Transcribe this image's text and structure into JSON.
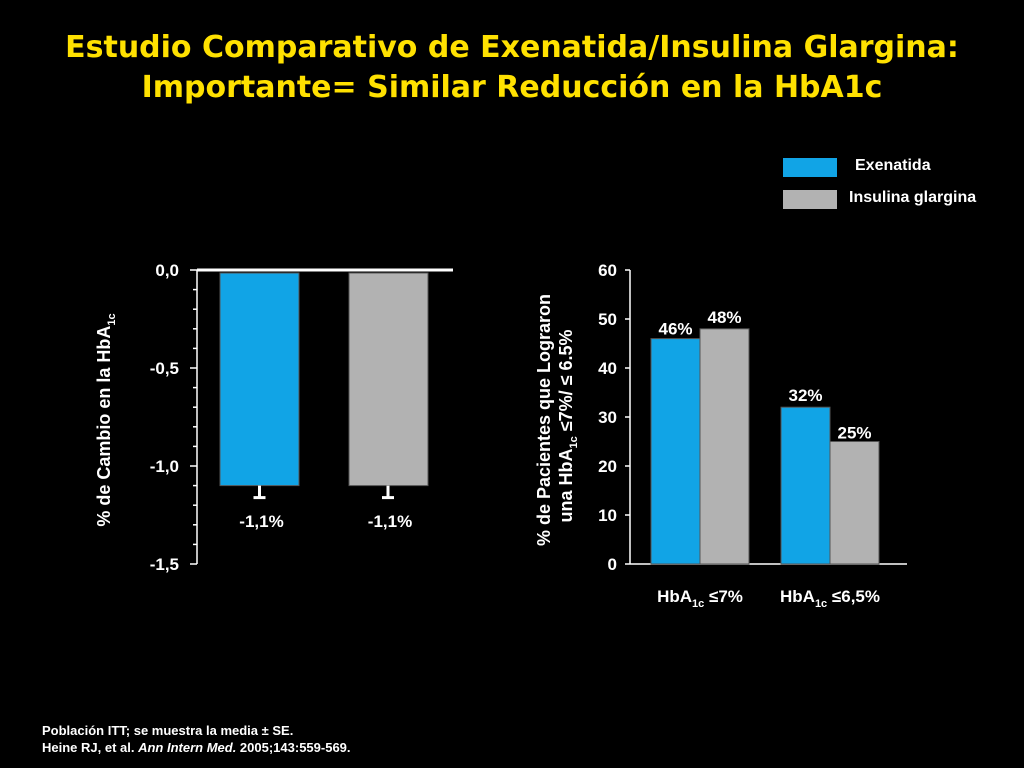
{
  "slide": {
    "title_line1": "Estudio Comparativo de Exenatida/Insulina Glargina:",
    "title_line2": "Importante= Similar Reducción en la HbA1c"
  },
  "legend": [
    {
      "label": "Exenatida",
      "color": "#11a4e6"
    },
    {
      "label": "Insulina glargina",
      "color": "#b2b2b2"
    }
  ],
  "chart_data": [
    {
      "type": "bar",
      "ylabel": "% de Cambio en la HbA1c",
      "ylim": [
        -1.5,
        0.0
      ],
      "yticks": [
        "0,0",
        "-0,5",
        "-1,0",
        "-1,5"
      ],
      "series": [
        {
          "name": "Exenatida",
          "value": -1.1,
          "data_label": "-1,1%",
          "color": "#11a4e6"
        },
        {
          "name": "Insulina glargina",
          "value": -1.1,
          "data_label": "-1,1%",
          "color": "#b2b2b2"
        }
      ],
      "error_bars": true
    },
    {
      "type": "bar",
      "ylabel_line1": "% de Pacientes que Lograron",
      "ylabel_line2": "una HbA1c ≤7%/ ≤ 6.5%",
      "ylim": [
        0,
        60
      ],
      "yticks": [
        "0",
        "10",
        "20",
        "30",
        "40",
        "50",
        "60"
      ],
      "categories": [
        "HbA1c ≤7%",
        "HbA1c ≤6,5%"
      ],
      "category_parts": [
        {
          "base": "HbA",
          "sub": "1c",
          "rest": " ≤7%"
        },
        {
          "base": "HbA",
          "sub": "1c",
          "rest": " ≤6,5%"
        }
      ],
      "series": [
        {
          "name": "Exenatida",
          "values": [
            46,
            32
          ],
          "data_labels": [
            "46%",
            "32%"
          ],
          "color": "#11a4e6"
        },
        {
          "name": "Insulina glargina",
          "values": [
            48,
            25
          ],
          "data_labels": [
            "48%",
            "25%"
          ],
          "color": "#b2b2b2"
        }
      ]
    }
  ],
  "footnote": {
    "line1": "Población ITT; se muestra la  media ± SE.",
    "line2_authors": "Heine RJ, et al. ",
    "line2_journal": "Ann Intern Med.",
    "line2_rest": " 2005;143:559-569."
  }
}
